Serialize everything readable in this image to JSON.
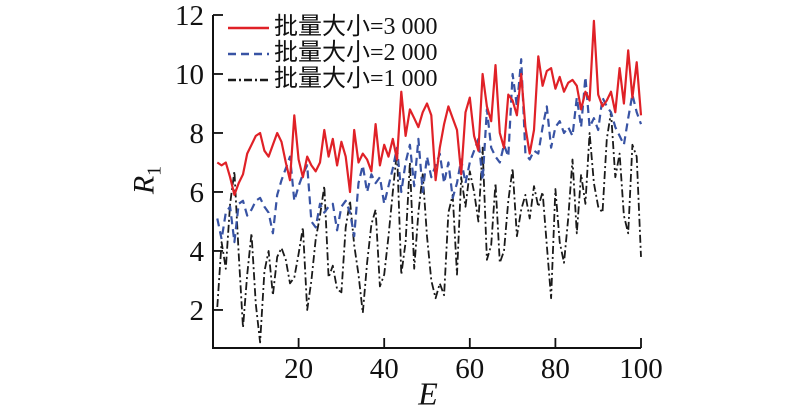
{
  "figure": {
    "background": "#ffffff",
    "axis_color": "#111111"
  },
  "chart_data": {
    "type": "line",
    "title": "",
    "xlabel": "E",
    "ylabel": "R",
    "ylabel_subscript": "1",
    "xlim": [
      0,
      100
    ],
    "ylim": [
      0.71,
      12
    ],
    "xticks": [
      20,
      40,
      60,
      80,
      100
    ],
    "yticks": [
      2,
      4,
      6,
      8,
      10,
      12
    ],
    "grid": false,
    "legend_position": "top-left-inside",
    "x_start": 1,
    "x_step": 1,
    "series": [
      {
        "name": "批量大小=3 000",
        "color": "#e02127",
        "style": "solid",
        "line_width": 2.2,
        "values": [
          7.0,
          6.9,
          7.0,
          6.5,
          5.9,
          6.3,
          6.6,
          7.3,
          7.6,
          7.9,
          8.0,
          7.4,
          7.2,
          7.6,
          8.0,
          7.7,
          7.0,
          6.4,
          8.6,
          7.1,
          6.5,
          7.2,
          6.9,
          6.7,
          7.0,
          8.1,
          7.2,
          7.8,
          6.9,
          7.7,
          7.2,
          6.0,
          8.1,
          7.0,
          7.3,
          7.1,
          6.7,
          8.3,
          6.9,
          7.6,
          7.2,
          7.8,
          7.1,
          9.4,
          7.9,
          8.8,
          8.5,
          8.2,
          8.7,
          9.0,
          8.6,
          6.4,
          7.5,
          8.3,
          8.9,
          8.5,
          8.1,
          6.6,
          8.7,
          9.2,
          7.9,
          7.4,
          10.0,
          8.9,
          8.4,
          10.3,
          8.0,
          7.5,
          9.3,
          9.1,
          8.6,
          10.0,
          8.2,
          7.3,
          8.1,
          10.6,
          9.6,
          10.1,
          10.2,
          9.5,
          9.9,
          9.4,
          9.7,
          9.8,
          9.6,
          8.8,
          9.4,
          9.1,
          11.8,
          9.3,
          8.9,
          9.1,
          9.4,
          8.7,
          10.2,
          9.0,
          10.8,
          9.2,
          10.4,
          8.6
        ]
      },
      {
        "name": "批量大小=2 000",
        "color": "#3853a4",
        "style": "dashed",
        "line_width": 2.2,
        "values": [
          5.1,
          4.4,
          5.3,
          5.5,
          4.3,
          5.6,
          5.7,
          5.2,
          5.4,
          5.7,
          5.8,
          5.5,
          5.3,
          4.6,
          5.9,
          6.4,
          6.8,
          7.2,
          5.7,
          6.2,
          6.6,
          6.9,
          5.0,
          4.8,
          5.6,
          5.3,
          5.5,
          5.6,
          4.7,
          5.5,
          5.7,
          5.3,
          4.5,
          6.3,
          6.9,
          6.0,
          6.6,
          6.3,
          6.5,
          5.6,
          6.2,
          6.8,
          7.5,
          6.0,
          7.0,
          7.6,
          6.2,
          7.8,
          6.0,
          7.2,
          6.5,
          6.9,
          7.3,
          6.3,
          7.0,
          5.8,
          6.3,
          7.1,
          6.3,
          7.0,
          7.4,
          7.8,
          6.4,
          8.8,
          7.5,
          7.2,
          7.0,
          7.6,
          7.2,
          10.0,
          8.9,
          10.5,
          7.3,
          7.1,
          7.4,
          7.3,
          8.2,
          8.9,
          7.5,
          8.2,
          8.4,
          8.0,
          8.2,
          7.9,
          9.2,
          8.2,
          9.9,
          8.2,
          8.5,
          8.1,
          9.2,
          8.9,
          8.7,
          8.2,
          7.9,
          7.6,
          8.5,
          9.3,
          8.7,
          8.3
        ]
      },
      {
        "name": "批量大小=1 000",
        "color": "#1a1a1a",
        "style": "dashdot",
        "line_width": 1.8,
        "values": [
          2.1,
          4.3,
          3.4,
          5.6,
          6.7,
          3.9,
          1.4,
          3.2,
          4.6,
          2.2,
          0.9,
          3.3,
          4.0,
          2.5,
          3.8,
          4.1,
          3.7,
          2.9,
          3.1,
          3.9,
          4.8,
          2.0,
          3.0,
          4.4,
          5.2,
          6.2,
          3.1,
          3.5,
          2.7,
          2.6,
          4.8,
          5.7,
          4.2,
          3.2,
          1.9,
          3.6,
          4.9,
          5.4,
          2.8,
          3.2,
          4.5,
          6.0,
          7.4,
          3.2,
          4.3,
          7.0,
          3.4,
          5.3,
          6.6,
          4.5,
          3.0,
          2.4,
          2.9,
          2.5,
          5.3,
          5.9,
          3.2,
          6.5,
          5.5,
          6.7,
          6.0,
          5.0,
          7.5,
          3.7,
          4.2,
          6.3,
          3.6,
          4.0,
          5.7,
          6.8,
          4.5,
          5.4,
          5.9,
          5.1,
          6.2,
          5.5,
          6.0,
          4.2,
          2.4,
          6.1,
          4.3,
          3.6,
          5.1,
          7.1,
          4.6,
          6.6,
          5.6,
          8.0,
          6.3,
          5.5,
          5.3,
          7.8,
          8.7,
          6.5,
          7.3,
          5.2,
          4.6,
          7.6,
          7.2,
          3.8
        ]
      }
    ]
  }
}
